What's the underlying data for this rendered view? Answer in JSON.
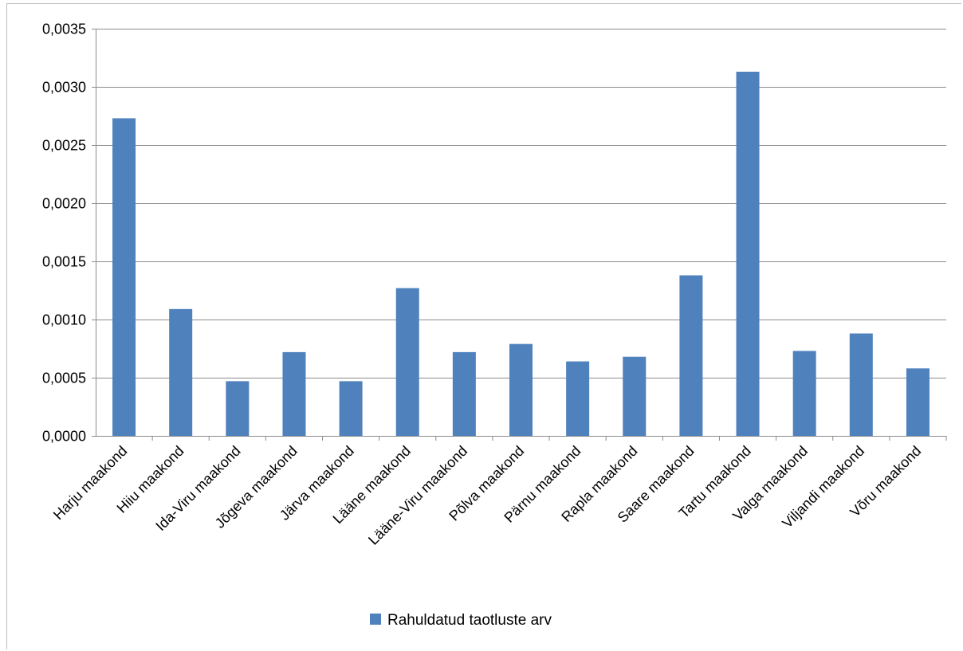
{
  "chart_data": {
    "type": "bar",
    "title": "",
    "xlabel": "",
    "ylabel": "",
    "categories": [
      "Harju maakond",
      "Hiiu maakond",
      "Ida-Viru maakond",
      "Jõgeva maakond",
      "Järva maakond",
      "Lääne maakond",
      "Lääne-Viru maakond",
      "Põlva maakond",
      "Pärnu maakond",
      "Rapla maakond",
      "Saare maakond",
      "Tartu maakond",
      "Valga maakond",
      "Viljandi maakond",
      "Võru maakond"
    ],
    "series": [
      {
        "name": "Rahuldatud taotluste arv",
        "color": "#4f81bd",
        "values": [
          0.00273,
          0.00109,
          0.00047,
          0.00072,
          0.00047,
          0.00127,
          0.00072,
          0.00079,
          0.00064,
          0.00068,
          0.00138,
          0.00313,
          0.00073,
          0.00088,
          0.00058
        ]
      }
    ],
    "ylim": [
      0,
      0.0035
    ],
    "yticks": [
      0,
      0.0005,
      0.001,
      0.0015,
      0.002,
      0.0025,
      0.003,
      0.0035
    ],
    "ytick_labels": [
      "0,0000",
      "0,0005",
      "0,0010",
      "0,0015",
      "0,0020",
      "0,0025",
      "0,0030",
      "0,0035"
    ],
    "grid": true,
    "legend_position": "bottom"
  }
}
